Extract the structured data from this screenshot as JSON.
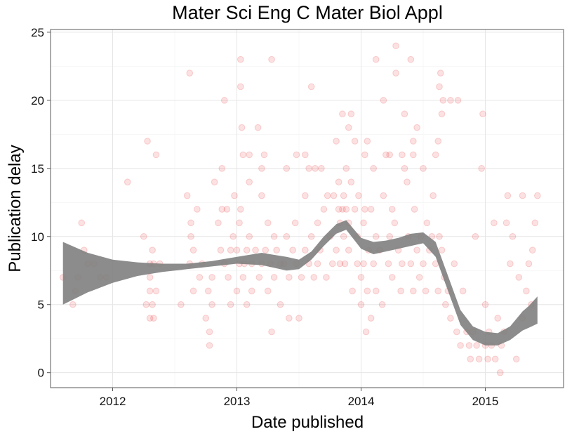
{
  "chart_data": {
    "type": "scatter",
    "title": "Mater Sci Eng C Mater Biol Appl",
    "xlabel": "Date published",
    "ylabel": "Publication delay",
    "xlim": [
      2011.5,
      2015.63
    ],
    "ylim": [
      -1.1,
      25.2
    ],
    "x_ticks": [
      2012,
      2013,
      2014,
      2015
    ],
    "x_tick_labels": [
      "2012",
      "2013",
      "2014",
      "2015"
    ],
    "y_ticks": [
      0,
      5,
      10,
      15,
      20,
      25
    ],
    "y_tick_labels": [
      "0",
      "5",
      "10",
      "15",
      "20",
      "25"
    ],
    "grid": true,
    "point_color": "#e41a1c",
    "point_opacity": 0.13,
    "smooth_color": "#808080",
    "points": [
      [
        2011.6,
        7
      ],
      [
        2011.68,
        5
      ],
      [
        2011.7,
        6
      ],
      [
        2011.72,
        7
      ],
      [
        2011.75,
        11
      ],
      [
        2011.77,
        9
      ],
      [
        2011.8,
        8
      ],
      [
        2011.85,
        8
      ],
      [
        2011.9,
        7
      ],
      [
        2011.95,
        7
      ],
      [
        2012.12,
        14
      ],
      [
        2012.25,
        10
      ],
      [
        2012.27,
        5
      ],
      [
        2012.28,
        17
      ],
      [
        2012.3,
        8
      ],
      [
        2012.3,
        7
      ],
      [
        2012.3,
        6
      ],
      [
        2012.3,
        4
      ],
      [
        2012.32,
        9
      ],
      [
        2012.32,
        5
      ],
      [
        2012.33,
        8
      ],
      [
        2012.33,
        4
      ],
      [
        2012.35,
        6
      ],
      [
        2012.35,
        16
      ],
      [
        2012.38,
        8
      ],
      [
        2012.55,
        5
      ],
      [
        2012.6,
        13
      ],
      [
        2012.62,
        8
      ],
      [
        2012.62,
        22
      ],
      [
        2012.63,
        11
      ],
      [
        2012.63,
        10
      ],
      [
        2012.65,
        9
      ],
      [
        2012.65,
        6
      ],
      [
        2012.68,
        12
      ],
      [
        2012.7,
        7
      ],
      [
        2012.72,
        8
      ],
      [
        2012.75,
        4
      ],
      [
        2012.77,
        6
      ],
      [
        2012.78,
        3
      ],
      [
        2012.78,
        2
      ],
      [
        2012.8,
        5
      ],
      [
        2012.8,
        7
      ],
      [
        2012.82,
        14
      ],
      [
        2012.85,
        11
      ],
      [
        2012.87,
        9
      ],
      [
        2012.88,
        12
      ],
      [
        2012.88,
        15
      ],
      [
        2012.9,
        8
      ],
      [
        2012.9,
        20
      ],
      [
        2012.92,
        12
      ],
      [
        2012.93,
        7
      ],
      [
        2012.95,
        9
      ],
      [
        2012.95,
        5
      ],
      [
        2012.97,
        10
      ],
      [
        2012.98,
        13
      ],
      [
        2013,
        9
      ],
      [
        2013,
        6
      ],
      [
        2013.02,
        8
      ],
      [
        2013.02,
        11
      ],
      [
        2013.03,
        12
      ],
      [
        2013.03,
        21
      ],
      [
        2013.03,
        23
      ],
      [
        2013.04,
        18
      ],
      [
        2013.05,
        16
      ],
      [
        2013.05,
        7
      ],
      [
        2013.06,
        8
      ],
      [
        2013.08,
        9
      ],
      [
        2013.08,
        5
      ],
      [
        2013.1,
        16
      ],
      [
        2013.1,
        10
      ],
      [
        2013.1,
        14
      ],
      [
        2013.12,
        8
      ],
      [
        2013.12,
        6
      ],
      [
        2013.15,
        9
      ],
      [
        2013.17,
        18
      ],
      [
        2013.18,
        7
      ],
      [
        2013.2,
        8
      ],
      [
        2013.2,
        13
      ],
      [
        2013.2,
        15
      ],
      [
        2013.22,
        16
      ],
      [
        2013.23,
        9
      ],
      [
        2013.25,
        11
      ],
      [
        2013.25,
        6
      ],
      [
        2013.27,
        8
      ],
      [
        2013.28,
        23
      ],
      [
        2013.28,
        3
      ],
      [
        2013.3,
        7
      ],
      [
        2013.3,
        10
      ],
      [
        2013.32,
        9
      ],
      [
        2013.35,
        8
      ],
      [
        2013.35,
        5
      ],
      [
        2013.38,
        8
      ],
      [
        2013.4,
        10
      ],
      [
        2013.4,
        15
      ],
      [
        2013.42,
        7
      ],
      [
        2013.42,
        4
      ],
      [
        2013.45,
        9
      ],
      [
        2013.47,
        11
      ],
      [
        2013.48,
        8
      ],
      [
        2013.48,
        16
      ],
      [
        2013.5,
        4
      ],
      [
        2013.52,
        7
      ],
      [
        2013.55,
        9
      ],
      [
        2013.55,
        13
      ],
      [
        2013.55,
        16
      ],
      [
        2013.58,
        8
      ],
      [
        2013.58,
        15
      ],
      [
        2013.6,
        10
      ],
      [
        2013.6,
        21
      ],
      [
        2013.62,
        7
      ],
      [
        2013.63,
        15
      ],
      [
        2013.65,
        8
      ],
      [
        2013.65,
        11
      ],
      [
        2013.67,
        9
      ],
      [
        2013.68,
        15
      ],
      [
        2013.7,
        12
      ],
      [
        2013.72,
        7
      ],
      [
        2013.73,
        13
      ],
      [
        2013.75,
        10
      ],
      [
        2013.77,
        8
      ],
      [
        2013.78,
        13
      ],
      [
        2013.8,
        9
      ],
      [
        2013.8,
        17
      ],
      [
        2013.82,
        14
      ],
      [
        2013.82,
        12
      ],
      [
        2013.83,
        8
      ],
      [
        2013.83,
        11
      ],
      [
        2013.85,
        12
      ],
      [
        2013.85,
        19
      ],
      [
        2013.86,
        13
      ],
      [
        2013.86,
        10
      ],
      [
        2013.87,
        8
      ],
      [
        2013.88,
        12
      ],
      [
        2013.88,
        15
      ],
      [
        2013.9,
        9
      ],
      [
        2013.9,
        18
      ],
      [
        2013.9,
        11
      ],
      [
        2013.92,
        19
      ],
      [
        2013.92,
        14
      ],
      [
        2013.93,
        6
      ],
      [
        2013.95,
        12
      ],
      [
        2013.95,
        17
      ],
      [
        2013.97,
        10
      ],
      [
        2013.97,
        8
      ],
      [
        2013.98,
        13
      ],
      [
        2014,
        7
      ],
      [
        2014,
        5
      ],
      [
        2014.02,
        8
      ],
      [
        2014.02,
        11
      ],
      [
        2014.03,
        12
      ],
      [
        2014.03,
        16
      ],
      [
        2014.04,
        3
      ],
      [
        2014.05,
        17
      ],
      [
        2014.05,
        6
      ],
      [
        2014.06,
        9
      ],
      [
        2014.08,
        4
      ],
      [
        2014.08,
        12
      ],
      [
        2014.1,
        8
      ],
      [
        2014.1,
        15
      ],
      [
        2014.12,
        6
      ],
      [
        2014.12,
        10
      ],
      [
        2014.12,
        23
      ],
      [
        2014.15,
        9
      ],
      [
        2014.17,
        5
      ],
      [
        2014.18,
        13
      ],
      [
        2014.18,
        20
      ],
      [
        2014.2,
        16
      ],
      [
        2014.22,
        8
      ],
      [
        2014.23,
        10
      ],
      [
        2014.23,
        16
      ],
      [
        2014.25,
        7
      ],
      [
        2014.25,
        12
      ],
      [
        2014.27,
        11
      ],
      [
        2014.28,
        24
      ],
      [
        2014.28,
        22
      ],
      [
        2014.3,
        9
      ],
      [
        2014.32,
        6
      ],
      [
        2014.33,
        16
      ],
      [
        2014.33,
        8
      ],
      [
        2014.35,
        15
      ],
      [
        2014.35,
        19
      ],
      [
        2014.37,
        14
      ],
      [
        2014.38,
        10
      ],
      [
        2014.4,
        8
      ],
      [
        2014.4,
        23
      ],
      [
        2014.42,
        6
      ],
      [
        2014.42,
        16
      ],
      [
        2014.42,
        17
      ],
      [
        2014.43,
        12
      ],
      [
        2014.45,
        9
      ],
      [
        2014.45,
        18
      ],
      [
        2014.47,
        7
      ],
      [
        2014.48,
        10
      ],
      [
        2014.5,
        8
      ],
      [
        2014.5,
        15
      ],
      [
        2014.52,
        6
      ],
      [
        2014.53,
        11
      ],
      [
        2014.55,
        9
      ],
      [
        2014.57,
        10
      ],
      [
        2014.58,
        13
      ],
      [
        2014.6,
        8
      ],
      [
        2014.6,
        16
      ],
      [
        2014.62,
        6
      ],
      [
        2014.62,
        17
      ],
      [
        2014.63,
        21
      ],
      [
        2014.63,
        10
      ],
      [
        2014.64,
        22
      ],
      [
        2014.65,
        9
      ],
      [
        2014.65,
        19
      ],
      [
        2014.66,
        20
      ],
      [
        2014.67,
        7
      ],
      [
        2014.68,
        5
      ],
      [
        2014.7,
        6
      ],
      [
        2014.72,
        4
      ],
      [
        2014.72,
        20
      ],
      [
        2014.75,
        8
      ],
      [
        2014.77,
        3
      ],
      [
        2014.78,
        20
      ],
      [
        2014.8,
        2
      ],
      [
        2014.82,
        6
      ],
      [
        2014.85,
        3
      ],
      [
        2014.87,
        2
      ],
      [
        2014.88,
        1
      ],
      [
        2014.9,
        3
      ],
      [
        2014.92,
        10
      ],
      [
        2014.93,
        2
      ],
      [
        2014.95,
        1
      ],
      [
        2014.97,
        15
      ],
      [
        2014.98,
        19
      ],
      [
        2015,
        2
      ],
      [
        2015,
        5
      ],
      [
        2015.02,
        1
      ],
      [
        2015.03,
        3
      ],
      [
        2015.05,
        2
      ],
      [
        2015.07,
        11
      ],
      [
        2015.08,
        1
      ],
      [
        2015.1,
        4
      ],
      [
        2015.12,
        0
      ],
      [
        2015.13,
        2
      ],
      [
        2015.15,
        3
      ],
      [
        2015.17,
        11
      ],
      [
        2015.18,
        13
      ],
      [
        2015.2,
        8
      ],
      [
        2015.22,
        10
      ],
      [
        2015.25,
        1
      ],
      [
        2015.27,
        7
      ],
      [
        2015.3,
        4
      ],
      [
        2015.3,
        13
      ],
      [
        2015.33,
        6
      ],
      [
        2015.35,
        8
      ],
      [
        2015.37,
        5
      ],
      [
        2015.38,
        9
      ],
      [
        2015.4,
        11
      ],
      [
        2015.42,
        13
      ]
    ],
    "smooth": {
      "x": [
        2011.6,
        2011.8,
        2012.0,
        2012.2,
        2012.4,
        2012.6,
        2012.8,
        2013.0,
        2013.2,
        2013.4,
        2013.5,
        2013.6,
        2013.7,
        2013.8,
        2013.88,
        2014.0,
        2014.1,
        2014.2,
        2014.3,
        2014.4,
        2014.5,
        2014.6,
        2014.7,
        2014.8,
        2014.9,
        2015.0,
        2015.1,
        2015.2,
        2015.3,
        2015.35,
        2015.42
      ],
      "lower": [
        5.0,
        5.9,
        6.6,
        7.1,
        7.4,
        7.6,
        7.8,
        8.0,
        7.9,
        7.5,
        7.6,
        8.3,
        9.3,
        10.2,
        10.5,
        9.1,
        8.7,
        8.9,
        9.1,
        9.3,
        9.5,
        8.5,
        6.0,
        3.5,
        2.4,
        2.0,
        2.0,
        2.4,
        3.1,
        3.3,
        3.6
      ],
      "upper": [
        9.6,
        8.8,
        8.3,
        8.1,
        8.0,
        8.0,
        8.2,
        8.5,
        8.8,
        8.5,
        8.3,
        8.9,
        10.0,
        10.9,
        11.2,
        9.9,
        9.6,
        9.7,
        9.9,
        10.2,
        10.3,
        9.6,
        7.1,
        4.6,
        3.4,
        3.0,
        2.9,
        3.4,
        4.5,
        4.9,
        5.6
      ]
    }
  }
}
